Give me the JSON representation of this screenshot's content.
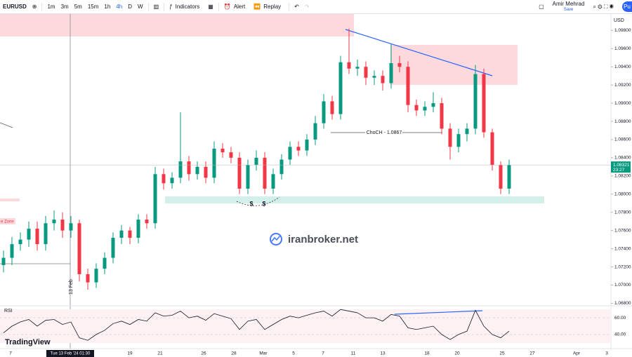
{
  "toolbar": {
    "symbol": "EURUSD",
    "intervals": [
      "1m",
      "3m",
      "5m",
      "15m",
      "1h",
      "4h",
      "D",
      "W"
    ],
    "active_interval": "4h",
    "buttons": [
      "Indicators",
      "Alert",
      "Replay"
    ],
    "user": "Amir Mehrad",
    "save": "Save",
    "publish": "Pu"
  },
  "chart_data": {
    "type": "candlestick",
    "currency": "USD",
    "open": [
      1.0722,
      1.073,
      1.0745,
      1.075,
      1.0762,
      1.0745,
      1.0768,
      1.0772,
      1.076,
      1.0768,
      1.0712,
      1.0703,
      1.0718,
      1.073,
      1.0752,
      1.076,
      1.0752,
      1.0772,
      1.0768,
      1.0822,
      1.0812,
      1.0818,
      1.0836,
      1.0822,
      1.083,
      1.0818,
      1.085,
      1.0846,
      1.084,
      1.0806,
      1.0832,
      1.084,
      1.0806,
      1.0822,
      1.0838,
      1.0852,
      1.0848,
      1.086,
      1.0878,
      1.0902,
      1.0888,
      1.0945,
      1.0938,
      1.094,
      1.0928,
      1.093,
      1.0922,
      1.0944,
      1.094,
      1.0898,
      1.0892,
      1.0896,
      1.09,
      1.0872,
      1.0852,
      1.0866,
      1.0872,
      1.0932,
      1.0868,
      1.0832,
      1.0806
    ],
    "high": [
      1.0738,
      1.0753,
      1.0758,
      1.077,
      1.077,
      1.0776,
      1.0782,
      1.078,
      1.0776,
      1.0772,
      1.0718,
      1.0724,
      1.0736,
      1.0758,
      1.0766,
      1.0764,
      1.0778,
      1.0778,
      1.083,
      1.0828,
      1.0824,
      1.089,
      1.0842,
      1.0836,
      1.0836,
      1.0858,
      1.0856,
      1.0852,
      1.0846,
      1.0838,
      1.0848,
      1.0846,
      1.0828,
      1.0844,
      1.0858,
      1.0858,
      1.0866,
      1.0886,
      1.091,
      1.0908,
      1.0952,
      1.0982,
      1.0948,
      1.0946,
      1.0936,
      1.0936,
      1.0965,
      1.0952,
      1.0946,
      1.0904,
      1.0902,
      1.0912,
      1.0906,
      1.0878,
      1.0872,
      1.0878,
      1.0942,
      1.0938,
      1.0872,
      1.0836,
      1.0838
    ],
    "low": [
      1.0714,
      1.0722,
      1.0738,
      1.0742,
      1.0738,
      1.0738,
      1.076,
      1.0752,
      1.0752,
      1.0704,
      1.0695,
      1.0697,
      1.0712,
      1.0724,
      1.0745,
      1.0745,
      1.0746,
      1.0762,
      1.0762,
      1.0805,
      1.0806,
      1.0812,
      1.0815,
      1.0816,
      1.0812,
      1.0812,
      1.084,
      1.0834,
      1.08,
      1.08,
      1.0826,
      1.08,
      1.08,
      1.0816,
      1.0832,
      1.0842,
      1.0842,
      1.0854,
      1.0872,
      1.0882,
      1.0882,
      1.0932,
      1.093,
      1.092,
      1.092,
      1.0914,
      1.0916,
      1.0934,
      1.089,
      1.0886,
      1.0886,
      1.089,
      1.0866,
      1.0838,
      1.0846,
      1.0858,
      1.0866,
      1.0862,
      1.0826,
      1.08,
      1.08
    ],
    "close": [
      1.073,
      1.0745,
      1.075,
      1.0762,
      1.0745,
      1.0768,
      1.0772,
      1.076,
      1.0768,
      1.0712,
      1.0703,
      1.0718,
      1.073,
      1.0752,
      1.076,
      1.0752,
      1.0772,
      1.0768,
      1.0822,
      1.0812,
      1.0818,
      1.0836,
      1.0822,
      1.083,
      1.0818,
      1.085,
      1.0846,
      1.084,
      1.0806,
      1.0832,
      1.084,
      1.0806,
      1.0822,
      1.0838,
      1.0852,
      1.0848,
      1.086,
      1.0878,
      1.0902,
      1.0888,
      1.0945,
      1.0938,
      1.094,
      1.0928,
      1.093,
      1.0922,
      1.0944,
      1.094,
      1.0898,
      1.0892,
      1.0896,
      1.09,
      1.0872,
      1.0852,
      1.0866,
      1.0872,
      1.0932,
      1.0868,
      1.0832,
      1.0806,
      1.0832
    ],
    "ylim": [
      1.0678,
      1.0998
    ],
    "yticks": [
      {
        "value": 1.098,
        "label": "1.09800"
      },
      {
        "value": 1.096,
        "label": "1.09600"
      },
      {
        "value": 1.094,
        "label": "1.09400"
      },
      {
        "value": 1.092,
        "label": "1.09200"
      },
      {
        "value": 1.09,
        "label": "1.09000"
      },
      {
        "value": 1.088,
        "label": "1.08800"
      },
      {
        "value": 1.086,
        "label": "1.08600"
      },
      {
        "value": 1.084,
        "label": "1.08400"
      },
      {
        "value": 1.082,
        "label": "1.08200"
      },
      {
        "value": 1.08,
        "label": "1.08000"
      },
      {
        "value": 1.078,
        "label": "1.07800"
      },
      {
        "value": 1.076,
        "label": "1.07600"
      },
      {
        "value": 1.074,
        "label": "1.07400"
      },
      {
        "value": 1.072,
        "label": "1.07200"
      },
      {
        "value": 1.07,
        "label": "1.07000"
      },
      {
        "value": 1.068,
        "label": "1.06800"
      }
    ],
    "x_labels": [
      "7",
      "19",
      "21",
      "26",
      "28",
      "Mar",
      "5",
      "7",
      "11",
      "13",
      "18",
      "20",
      "25",
      "27",
      "Apr",
      "3"
    ],
    "crosshair_x_label": "Tue 13 Feb '24  01:30",
    "crosshair_y_label": "13 Feb",
    "last_price": 1.08321,
    "countdown": "23:27",
    "up_color": "#089981",
    "down_color": "#f23645",
    "annotations": {
      "choch": "ChoCH - 1.0867",
      "liquidity": [
        "$",
        "$"
      ],
      "zone": "e Zone"
    },
    "watermark": "iranbroker.net",
    "branding": "TradingView"
  },
  "rsi": {
    "type": "line",
    "title": "RSI",
    "color": "#131722",
    "values": [
      42,
      50,
      55,
      58,
      50,
      57,
      58,
      52,
      55,
      36,
      33,
      40,
      45,
      53,
      56,
      52,
      58,
      56,
      66,
      62,
      63,
      68,
      60,
      62,
      57,
      65,
      62,
      59,
      46,
      56,
      58,
      46,
      52,
      58,
      62,
      60,
      63,
      66,
      68,
      62,
      70,
      68,
      66,
      60,
      60,
      56,
      64,
      62,
      48,
      46,
      48,
      50,
      40,
      34,
      40,
      44,
      69,
      50,
      40,
      36,
      44
    ],
    "ylim": [
      29,
      71
    ],
    "yticks": [
      {
        "value": 60,
        "label": "60.00"
      },
      {
        "value": 40,
        "label": "40.00"
      }
    ]
  }
}
